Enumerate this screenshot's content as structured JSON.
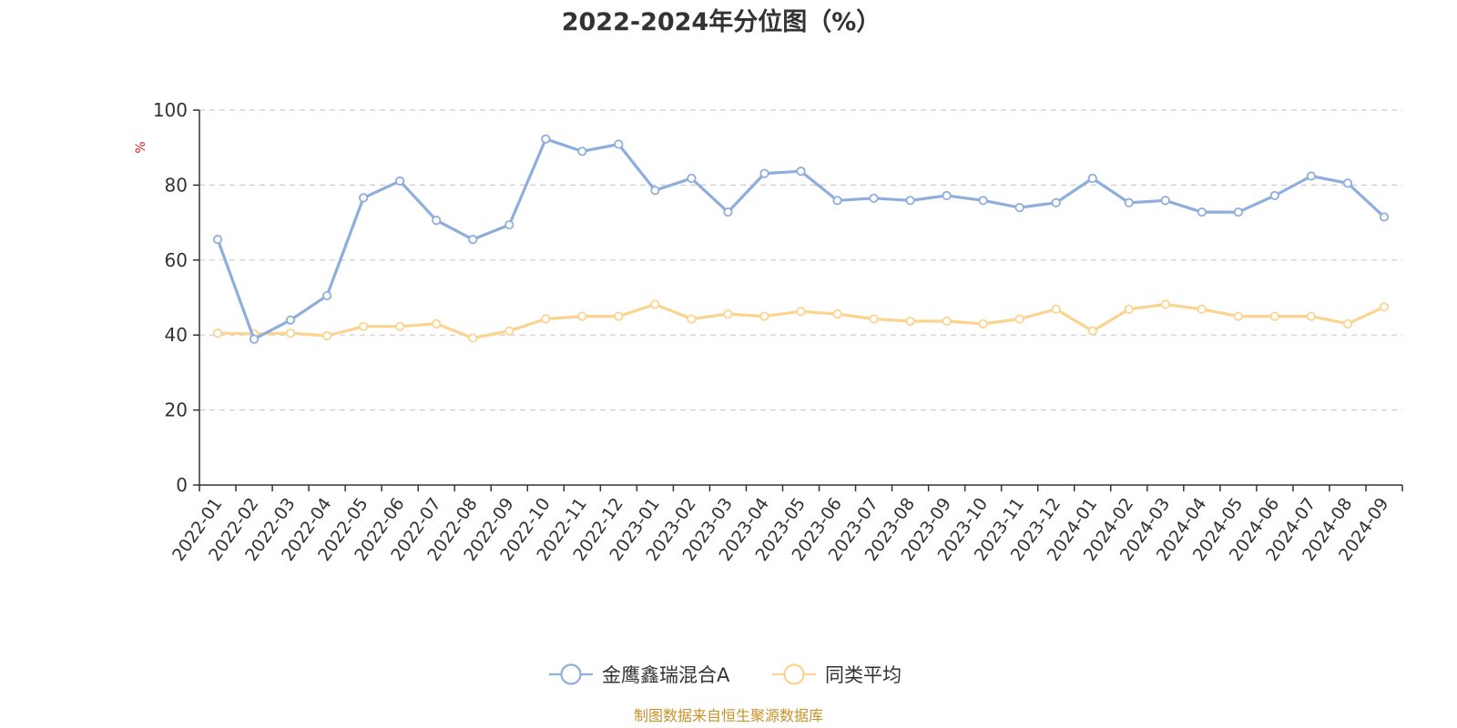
{
  "chart_data": {
    "type": "line",
    "title": "2022-2024年分位图（%）",
    "ylabel": "%",
    "ylim": [
      0,
      100
    ],
    "yticks": [
      0,
      20,
      40,
      60,
      80,
      100
    ],
    "grid": true,
    "legend_position": "bottom-center",
    "categories": [
      "2022-01",
      "2022-02",
      "2022-03",
      "2022-04",
      "2022-05",
      "2022-06",
      "2022-07",
      "2022-08",
      "2022-09",
      "2022-10",
      "2022-11",
      "2022-12",
      "2023-01",
      "2023-02",
      "2023-03",
      "2023-04",
      "2023-05",
      "2023-06",
      "2023-07",
      "2023-08",
      "2023-09",
      "2023-10",
      "2023-11",
      "2023-12",
      "2024-01",
      "2024-02",
      "2024-03",
      "2024-04",
      "2024-05",
      "2024-06",
      "2024-07",
      "2024-08",
      "2024-09"
    ],
    "series": [
      {
        "name": "金鹰鑫瑞混合A",
        "color": "#8eaedb",
        "values": [
          65.5,
          38.9,
          44.0,
          50.5,
          76.6,
          81.1,
          70.6,
          65.5,
          69.4,
          92.3,
          89.0,
          90.9,
          78.6,
          81.8,
          72.8,
          83.1,
          83.7,
          75.9,
          76.5,
          75.9,
          77.2,
          75.9,
          74.0,
          75.3,
          81.8,
          75.3,
          75.9,
          72.8,
          72.8,
          77.2,
          82.4,
          80.5,
          71.5
        ]
      },
      {
        "name": "同类平均",
        "color": "#fbd48f",
        "values": [
          40.5,
          40.3,
          40.5,
          39.8,
          42.3,
          42.3,
          43.0,
          39.2,
          41.1,
          44.3,
          45.0,
          45.0,
          48.2,
          44.3,
          45.6,
          45.0,
          46.3,
          45.6,
          44.3,
          43.7,
          43.7,
          43.0,
          44.3,
          46.9,
          41.1,
          46.9,
          48.2,
          46.9,
          45.0,
          45.0,
          45.0,
          43.0,
          47.5
        ]
      }
    ]
  },
  "footer": {
    "source": "制图数据来自恒生聚源数据库"
  }
}
